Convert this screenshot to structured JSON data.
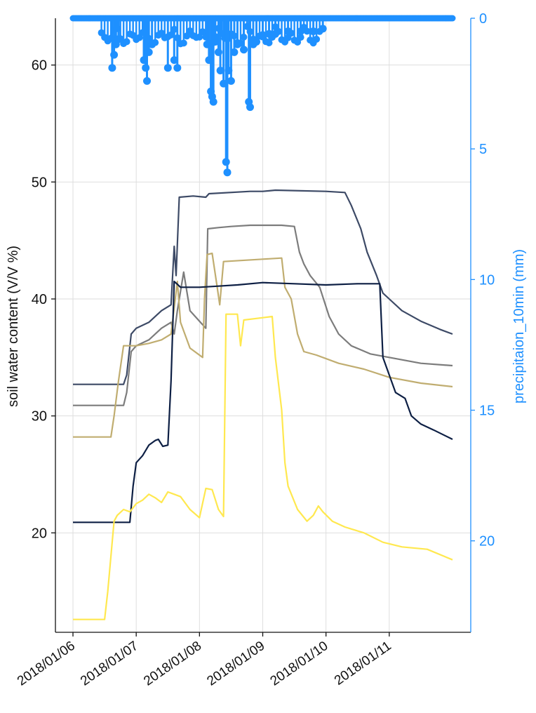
{
  "chart_data": {
    "type": "line",
    "title": "",
    "xlabel": "",
    "ylabel": "soil water content (V/V %)",
    "y2label": "precipitaion_10min (mm)",
    "x_categories": [
      "2018/01/06",
      "2018/01/07",
      "2018/01/08",
      "2018/01/09",
      "2018/01/10",
      "2018/01/11"
    ],
    "xlim_days": [
      0,
      6
    ],
    "ylim": [
      11.5,
      64
    ],
    "y_ticks": [
      20,
      30,
      40,
      50,
      60
    ],
    "y2lim": [
      23.5,
      0
    ],
    "y2_ticks": [
      0,
      5,
      10,
      15,
      20
    ],
    "grid": true,
    "colors": {
      "precip": "#1e90ff",
      "s1": "#3d4a66",
      "s2": "#7c7c7c",
      "s3": "#c0ad70",
      "s4": "#0d1f44",
      "s5": "#ffe84f",
      "grid": "#dedede",
      "axis": "#111111"
    },
    "series": [
      {
        "key": "s1",
        "points": [
          [
            0,
            32.7
          ],
          [
            0.8,
            32.7
          ],
          [
            0.85,
            33.5
          ],
          [
            0.92,
            37
          ],
          [
            1.0,
            37.5
          ],
          [
            1.2,
            38
          ],
          [
            1.4,
            39
          ],
          [
            1.55,
            39.5
          ],
          [
            1.6,
            44.5
          ],
          [
            1.63,
            42
          ],
          [
            1.68,
            48.7
          ],
          [
            1.9,
            48.8
          ],
          [
            2.1,
            48.7
          ],
          [
            2.15,
            49
          ],
          [
            2.8,
            49.2
          ],
          [
            3.0,
            49.2
          ],
          [
            3.2,
            49.3
          ],
          [
            4.0,
            49.2
          ],
          [
            4.3,
            49.1
          ],
          [
            4.4,
            48
          ],
          [
            4.55,
            46
          ],
          [
            4.65,
            44
          ],
          [
            4.8,
            42
          ],
          [
            4.9,
            40.5
          ],
          [
            5.0,
            40
          ],
          [
            5.2,
            39
          ],
          [
            5.5,
            38.1
          ],
          [
            5.8,
            37.4
          ],
          [
            6.0,
            37
          ]
        ]
      },
      {
        "key": "s2",
        "points": [
          [
            0,
            30.9
          ],
          [
            0.8,
            30.9
          ],
          [
            0.85,
            32
          ],
          [
            0.92,
            35.5
          ],
          [
            1.0,
            36
          ],
          [
            1.2,
            36.5
          ],
          [
            1.4,
            37.5
          ],
          [
            1.55,
            38
          ],
          [
            1.6,
            37
          ],
          [
            1.65,
            39
          ],
          [
            1.75,
            42.3
          ],
          [
            1.85,
            39
          ],
          [
            2.1,
            37.5
          ],
          [
            2.13,
            46
          ],
          [
            2.3,
            46.1
          ],
          [
            2.5,
            46.2
          ],
          [
            2.8,
            46.3
          ],
          [
            3.0,
            46.3
          ],
          [
            3.3,
            46.3
          ],
          [
            3.5,
            46.2
          ],
          [
            3.58,
            44
          ],
          [
            3.65,
            43
          ],
          [
            3.75,
            42
          ],
          [
            3.9,
            41
          ],
          [
            4.05,
            38.5
          ],
          [
            4.2,
            37
          ],
          [
            4.4,
            36
          ],
          [
            4.7,
            35.3
          ],
          [
            5.0,
            35
          ],
          [
            5.5,
            34.5
          ],
          [
            6.0,
            34.3
          ]
        ]
      },
      {
        "key": "s3",
        "points": [
          [
            0,
            28.2
          ],
          [
            0.6,
            28.2
          ],
          [
            0.65,
            30
          ],
          [
            0.72,
            33
          ],
          [
            0.8,
            36
          ],
          [
            1.0,
            36
          ],
          [
            1.2,
            36.2
          ],
          [
            1.4,
            36.5
          ],
          [
            1.55,
            37
          ],
          [
            1.65,
            41.5
          ],
          [
            1.7,
            38
          ],
          [
            1.85,
            35.8
          ],
          [
            2.05,
            35
          ],
          [
            2.08,
            40
          ],
          [
            2.12,
            43.8
          ],
          [
            2.2,
            43.9
          ],
          [
            2.28,
            41
          ],
          [
            2.32,
            39.5
          ],
          [
            2.38,
            43.2
          ],
          [
            3.0,
            43.4
          ],
          [
            3.3,
            43.5
          ],
          [
            3.35,
            41
          ],
          [
            3.45,
            40
          ],
          [
            3.55,
            37
          ],
          [
            3.65,
            35.5
          ],
          [
            3.85,
            35.2
          ],
          [
            4.2,
            34.5
          ],
          [
            4.6,
            34
          ],
          [
            5.0,
            33.3
          ],
          [
            5.5,
            32.8
          ],
          [
            6.0,
            32.5
          ]
        ]
      },
      {
        "key": "s4",
        "points": [
          [
            0,
            20.9
          ],
          [
            0.9,
            20.9
          ],
          [
            0.95,
            24
          ],
          [
            1.0,
            26
          ],
          [
            1.1,
            26.6
          ],
          [
            1.2,
            27.5
          ],
          [
            1.3,
            27.9
          ],
          [
            1.35,
            28
          ],
          [
            1.42,
            27.4
          ],
          [
            1.5,
            27.5
          ],
          [
            1.55,
            33
          ],
          [
            1.6,
            41.5
          ],
          [
            1.7,
            41
          ],
          [
            2.0,
            41
          ],
          [
            2.3,
            41.1
          ],
          [
            2.6,
            41.2
          ],
          [
            3.0,
            41.4
          ],
          [
            3.5,
            41.3
          ],
          [
            4.0,
            41.2
          ],
          [
            4.5,
            41.3
          ],
          [
            4.85,
            41.3
          ],
          [
            4.9,
            35
          ],
          [
            5.0,
            33.5
          ],
          [
            5.1,
            32
          ],
          [
            5.25,
            31.5
          ],
          [
            5.35,
            30
          ],
          [
            5.5,
            29.3
          ],
          [
            5.7,
            28.8
          ],
          [
            6.0,
            28
          ]
        ]
      },
      {
        "key": "s5",
        "points": [
          [
            0,
            12.6
          ],
          [
            0.5,
            12.6
          ],
          [
            0.55,
            15
          ],
          [
            0.6,
            18
          ],
          [
            0.65,
            21
          ],
          [
            0.7,
            21.5
          ],
          [
            0.8,
            22
          ],
          [
            0.9,
            21.8
          ],
          [
            1.0,
            22.5
          ],
          [
            1.1,
            22.8
          ],
          [
            1.2,
            23.3
          ],
          [
            1.3,
            23
          ],
          [
            1.4,
            22.6
          ],
          [
            1.5,
            23.5
          ],
          [
            1.6,
            23.3
          ],
          [
            1.7,
            23.1
          ],
          [
            1.85,
            22
          ],
          [
            2.0,
            21.3
          ],
          [
            2.1,
            23.8
          ],
          [
            2.2,
            23.7
          ],
          [
            2.3,
            22
          ],
          [
            2.38,
            21.4
          ],
          [
            2.42,
            38.7
          ],
          [
            2.6,
            38.7
          ],
          [
            2.65,
            36
          ],
          [
            2.7,
            38.2
          ],
          [
            3.0,
            38.4
          ],
          [
            3.15,
            38.5
          ],
          [
            3.2,
            35
          ],
          [
            3.3,
            30.5
          ],
          [
            3.35,
            26
          ],
          [
            3.4,
            24
          ],
          [
            3.55,
            22
          ],
          [
            3.7,
            21
          ],
          [
            3.8,
            21.5
          ],
          [
            3.88,
            22.3
          ],
          [
            3.95,
            21.8
          ],
          [
            4.1,
            21
          ],
          [
            4.3,
            20.5
          ],
          [
            4.6,
            20
          ],
          [
            4.9,
            19.2
          ],
          [
            5.2,
            18.8
          ],
          [
            5.6,
            18.6
          ],
          [
            6.0,
            17.7
          ]
        ]
      }
    ],
    "precip": {
      "name": "precipitaion_10min",
      "heavy_spikes": [
        [
          0.62,
          1.9
        ],
        [
          0.65,
          1.4
        ],
        [
          0.68,
          1.0
        ],
        [
          0.72,
          0.8
        ],
        [
          1.12,
          1.6
        ],
        [
          1.15,
          1.9
        ],
        [
          1.17,
          2.4
        ],
        [
          1.2,
          1.3
        ],
        [
          1.25,
          1.0
        ],
        [
          1.5,
          1.9
        ],
        [
          1.6,
          1.6
        ],
        [
          1.65,
          1.9
        ],
        [
          2.12,
          1.0
        ],
        [
          2.15,
          1.6
        ],
        [
          2.18,
          2.8
        ],
        [
          2.2,
          3.0
        ],
        [
          2.22,
          3.2
        ],
        [
          2.25,
          0.9
        ],
        [
          2.3,
          1.3
        ],
        [
          2.33,
          2.0
        ],
        [
          2.38,
          2.5
        ],
        [
          2.42,
          5.5
        ],
        [
          2.44,
          5.9
        ],
        [
          2.46,
          2.0
        ],
        [
          2.5,
          2.4
        ],
        [
          2.55,
          1.3
        ],
        [
          2.6,
          1.0
        ],
        [
          2.7,
          1.2
        ],
        [
          2.78,
          3.2
        ],
        [
          2.8,
          3.4
        ],
        [
          2.85,
          1.0
        ],
        [
          2.9,
          0.9
        ],
        [
          3.0,
          0.7
        ],
        [
          3.1,
          0.6
        ],
        [
          3.2,
          0.6
        ],
        [
          3.4,
          0.5
        ],
        [
          3.6,
          0.5
        ],
        [
          3.8,
          0.5
        ],
        [
          3.95,
          0.4
        ]
      ]
    }
  }
}
